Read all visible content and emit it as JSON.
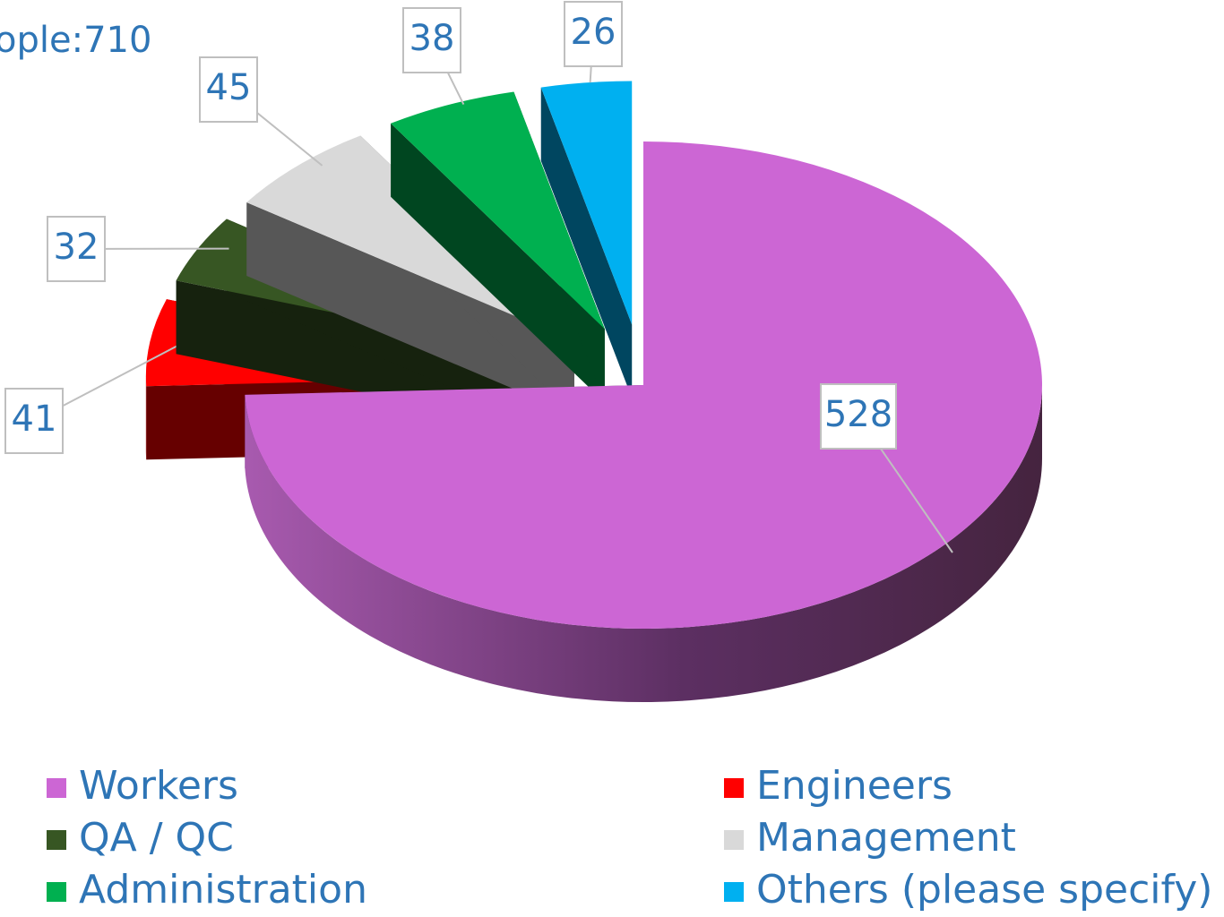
{
  "chart_data": {
    "type": "pie",
    "title": "ople:710",
    "categories": [
      "Workers",
      "Engineers",
      "QA / QC",
      "Management",
      "Administration",
      "Others (please specify)"
    ],
    "values": [
      528,
      41,
      32,
      45,
      38,
      26
    ],
    "colors": [
      "#cc66d4",
      "#ff0000",
      "#375623",
      "#d9d9d9",
      "#00b050",
      "#00b0f0"
    ]
  }
}
